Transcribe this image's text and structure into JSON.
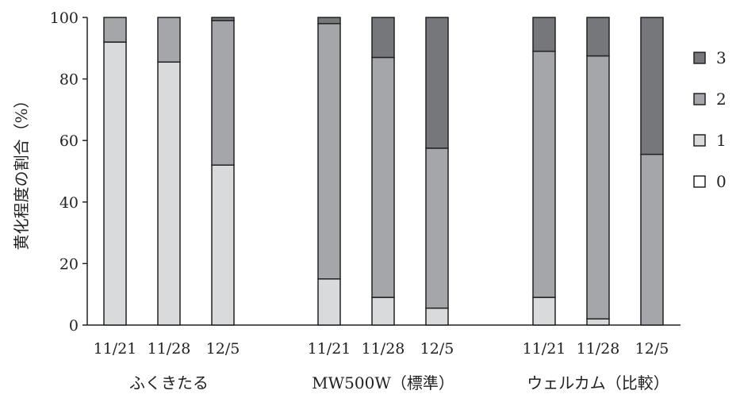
{
  "chart_data": {
    "type": "bar",
    "stacked": true,
    "ylabel": "黄化程度の割合（%）",
    "ylim": [
      0,
      100
    ],
    "yticks": [
      0,
      20,
      40,
      60,
      80,
      100
    ],
    "groups": [
      {
        "name": "ふくきたる",
        "categories": [
          "11/21",
          "11/28",
          "12/5"
        ]
      },
      {
        "name": "MW500W（標準）",
        "categories": [
          "11/21",
          "11/28",
          "12/5"
        ]
      },
      {
        "name": "ウェルカム（比較）",
        "categories": [
          "11/21",
          "11/28",
          "12/5"
        ]
      }
    ],
    "series": [
      {
        "name": "0",
        "color": "#ffffff",
        "values": [
          0,
          0,
          0,
          0,
          0,
          0,
          0,
          0,
          0
        ]
      },
      {
        "name": "1",
        "color": "#d9dadc",
        "values": [
          92,
          85.5,
          52,
          15,
          9,
          5.5,
          9,
          2,
          0
        ]
      },
      {
        "name": "2",
        "color": "#a5a6a9",
        "values": [
          8,
          14.5,
          47,
          83,
          78,
          52,
          80,
          85.5,
          55.5
        ]
      },
      {
        "name": "3",
        "color": "#76777a",
        "values": [
          0,
          0,
          1,
          2,
          13,
          42.5,
          11,
          12.5,
          44.5
        ]
      }
    ],
    "legend_position": "right",
    "legend_order": [
      "3",
      "2",
      "1",
      "0"
    ],
    "grid": false
  }
}
